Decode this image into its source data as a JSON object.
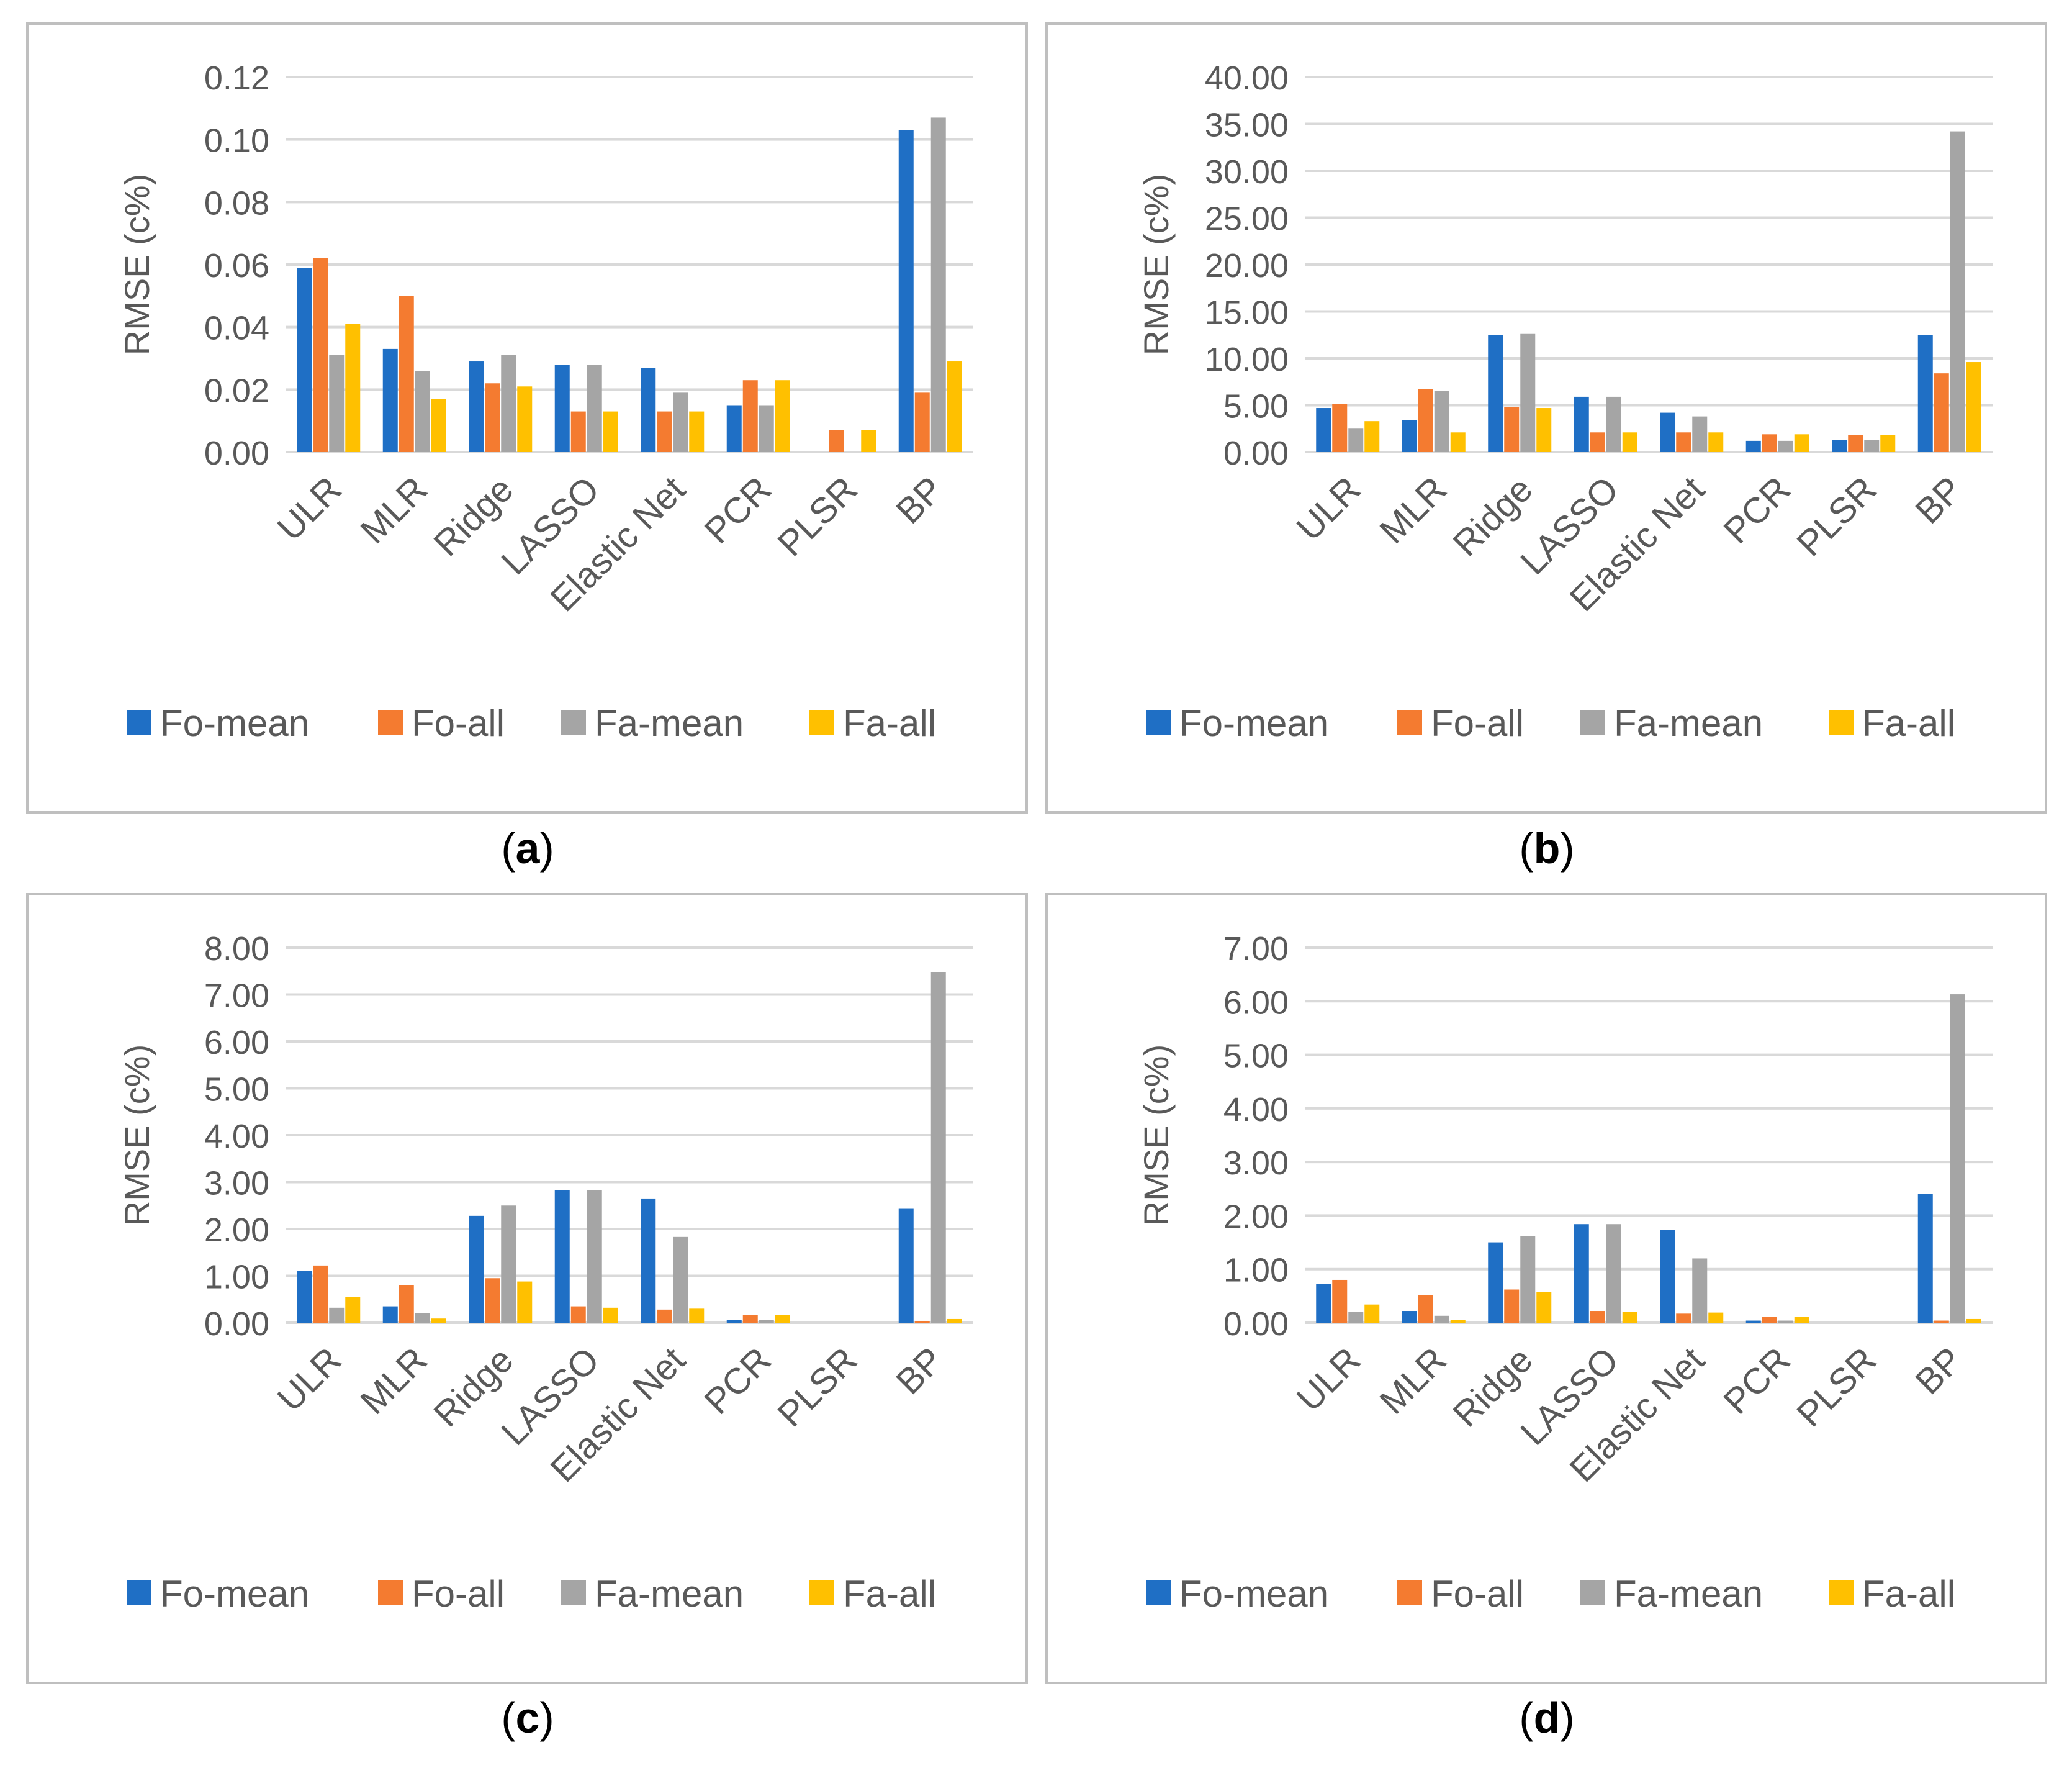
{
  "figure": {
    "panel_labels": [
      "a",
      "b",
      "c",
      "d"
    ]
  },
  "colors": {
    "Fo-mean": "#1F6FC5",
    "Fo-all": "#F47B30",
    "Fa-mean": "#A5A5A5",
    "Fa-all": "#FFC000",
    "grid": "#d9d9d9",
    "text": "#595959",
    "frame": "#bfbfbf"
  },
  "chart_data": [
    {
      "type": "bar",
      "label": "a",
      "ylabel": "RMSE (c%)",
      "ylim": [
        0,
        0.12
      ],
      "yticks": [
        "0.00",
        "0.02",
        "0.04",
        "0.06",
        "0.08",
        "0.10",
        "0.12"
      ],
      "categories": [
        "ULR",
        "MLR",
        "Ridge",
        "LASSO",
        "Elastic Net",
        "PCR",
        "PLSR",
        "BP"
      ],
      "series": [
        {
          "name": "Fo-mean",
          "values": [
            0.059,
            0.033,
            0.029,
            0.028,
            0.027,
            0.015,
            0.0,
            0.103
          ]
        },
        {
          "name": "Fo-all",
          "values": [
            0.062,
            0.05,
            0.022,
            0.013,
            0.013,
            0.023,
            0.007,
            0.019
          ]
        },
        {
          "name": "Fa-mean",
          "values": [
            0.031,
            0.026,
            0.031,
            0.028,
            0.019,
            0.015,
            0.0,
            0.107
          ]
        },
        {
          "name": "Fa-all",
          "values": [
            0.041,
            0.017,
            0.021,
            0.013,
            0.013,
            0.023,
            0.007,
            0.029
          ]
        }
      ],
      "grid": true,
      "legend": "bottom"
    },
    {
      "type": "bar",
      "label": "b",
      "ylabel": "RMSE (c%)",
      "ylim": [
        0,
        40
      ],
      "yticks": [
        "0.00",
        "5.00",
        "10.00",
        "15.00",
        "20.00",
        "25.00",
        "30.00",
        "35.00",
        "40.00"
      ],
      "categories": [
        "ULR",
        "MLR",
        "Ridge",
        "LASSO",
        "Elastic Net",
        "PCR",
        "PLSR",
        "BP"
      ],
      "series": [
        {
          "name": "Fo-mean",
          "values": [
            4.7,
            3.4,
            12.5,
            5.9,
            4.2,
            1.2,
            1.3,
            12.5
          ]
        },
        {
          "name": "Fo-all",
          "values": [
            5.1,
            6.7,
            4.8,
            2.1,
            2.1,
            1.9,
            1.8,
            8.4
          ]
        },
        {
          "name": "Fa-mean",
          "values": [
            2.5,
            6.5,
            12.6,
            5.9,
            3.8,
            1.2,
            1.3,
            34.2
          ]
        },
        {
          "name": "Fa-all",
          "values": [
            3.3,
            2.1,
            4.7,
            2.1,
            2.1,
            1.9,
            1.8,
            9.6
          ]
        }
      ],
      "grid": true,
      "legend": "bottom"
    },
    {
      "type": "bar",
      "label": "c",
      "ylabel": "RMSE (c%)",
      "ylim": [
        0,
        8
      ],
      "yticks": [
        "0.00",
        "1.00",
        "2.00",
        "3.00",
        "4.00",
        "5.00",
        "6.00",
        "7.00",
        "8.00"
      ],
      "categories": [
        "ULR",
        "MLR",
        "Ridge",
        "LASSO",
        "Elastic Net",
        "PCR",
        "PLSR",
        "BP"
      ],
      "series": [
        {
          "name": "Fo-mean",
          "values": [
            1.1,
            0.35,
            2.28,
            2.83,
            2.65,
            0.06,
            0.0,
            2.43
          ]
        },
        {
          "name": "Fo-all",
          "values": [
            1.22,
            0.8,
            0.95,
            0.35,
            0.28,
            0.16,
            0.0,
            0.04
          ]
        },
        {
          "name": "Fa-mean",
          "values": [
            0.32,
            0.21,
            2.5,
            2.83,
            1.83,
            0.06,
            0.0,
            7.48
          ]
        },
        {
          "name": "Fa-all",
          "values": [
            0.55,
            0.09,
            0.88,
            0.32,
            0.3,
            0.16,
            0.0,
            0.08
          ]
        }
      ],
      "grid": true,
      "legend": "bottom"
    },
    {
      "type": "bar",
      "label": "d",
      "ylabel": "RMSE (c%)",
      "ylim": [
        0,
        7
      ],
      "yticks": [
        "0.00",
        "1.00",
        "2.00",
        "3.00",
        "4.00",
        "5.00",
        "6.00",
        "7.00"
      ],
      "categories": [
        "ULR",
        "MLR",
        "Ridge",
        "LASSO",
        "Elastic Net",
        "PCR",
        "PLSR",
        "BP"
      ],
      "series": [
        {
          "name": "Fo-mean",
          "values": [
            0.72,
            0.22,
            1.5,
            1.84,
            1.73,
            0.04,
            0.0,
            2.4
          ]
        },
        {
          "name": "Fo-all",
          "values": [
            0.8,
            0.52,
            0.62,
            0.22,
            0.17,
            0.11,
            0.0,
            0.04
          ]
        },
        {
          "name": "Fa-mean",
          "values": [
            0.2,
            0.13,
            1.62,
            1.84,
            1.2,
            0.04,
            0.0,
            6.13
          ]
        },
        {
          "name": "Fa-all",
          "values": [
            0.34,
            0.05,
            0.57,
            0.2,
            0.19,
            0.11,
            0.0,
            0.07
          ]
        }
      ],
      "grid": true,
      "legend": "bottom"
    }
  ]
}
